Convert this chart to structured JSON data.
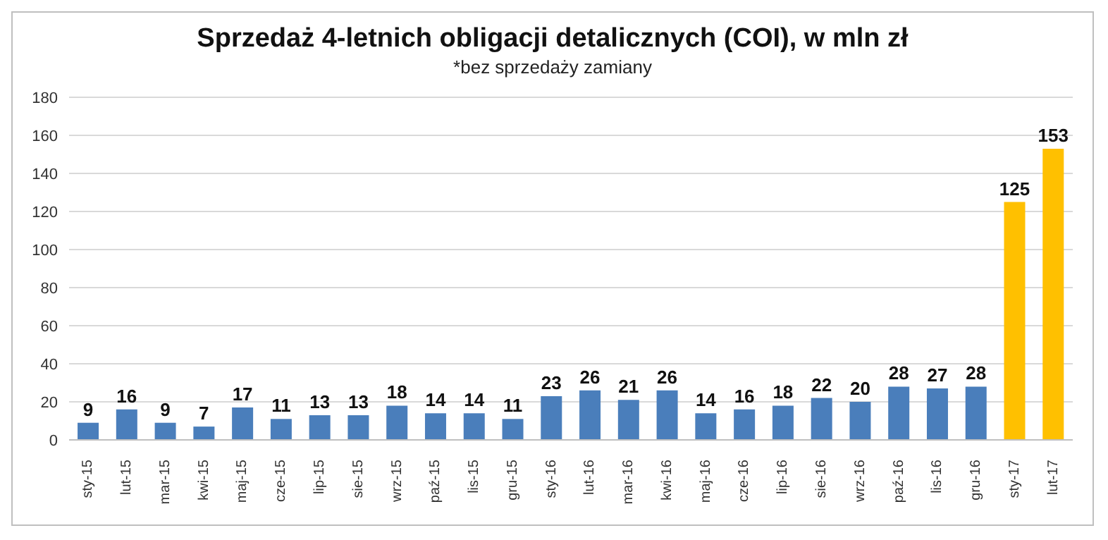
{
  "chart_data": {
    "type": "bar",
    "title": "Sprzedaż 4-letnich obligacji detalicznych (COI), w mln zł",
    "subtitle": "*bez sprzedaży zamiany",
    "categories": [
      "sty-15",
      "lut-15",
      "mar-15",
      "kwi-15",
      "maj-15",
      "cze-15",
      "lip-15",
      "sie-15",
      "wrz-15",
      "paź-15",
      "lis-15",
      "gru-15",
      "sty-16",
      "lut-16",
      "mar-16",
      "kwi-16",
      "maj-16",
      "cze-16",
      "lip-16",
      "sie-16",
      "wrz-16",
      "paź-16",
      "lis-16",
      "gru-16",
      "sty-17",
      "lut-17"
    ],
    "values": [
      9,
      16,
      9,
      7,
      17,
      11,
      13,
      13,
      18,
      14,
      14,
      11,
      23,
      26,
      21,
      26,
      14,
      16,
      18,
      22,
      20,
      28,
      27,
      28,
      125,
      153
    ],
    "colors": [
      "#4a7ebb",
      "#4a7ebb",
      "#4a7ebb",
      "#4a7ebb",
      "#4a7ebb",
      "#4a7ebb",
      "#4a7ebb",
      "#4a7ebb",
      "#4a7ebb",
      "#4a7ebb",
      "#4a7ebb",
      "#4a7ebb",
      "#4a7ebb",
      "#4a7ebb",
      "#4a7ebb",
      "#4a7ebb",
      "#4a7ebb",
      "#4a7ebb",
      "#4a7ebb",
      "#4a7ebb",
      "#4a7ebb",
      "#4a7ebb",
      "#4a7ebb",
      "#4a7ebb",
      "#ffc000",
      "#ffc000"
    ],
    "ylim": [
      0,
      180
    ],
    "yticks": [
      0,
      20,
      40,
      60,
      80,
      100,
      120,
      140,
      160,
      180
    ],
    "grid": "y",
    "data_labels": true
  }
}
